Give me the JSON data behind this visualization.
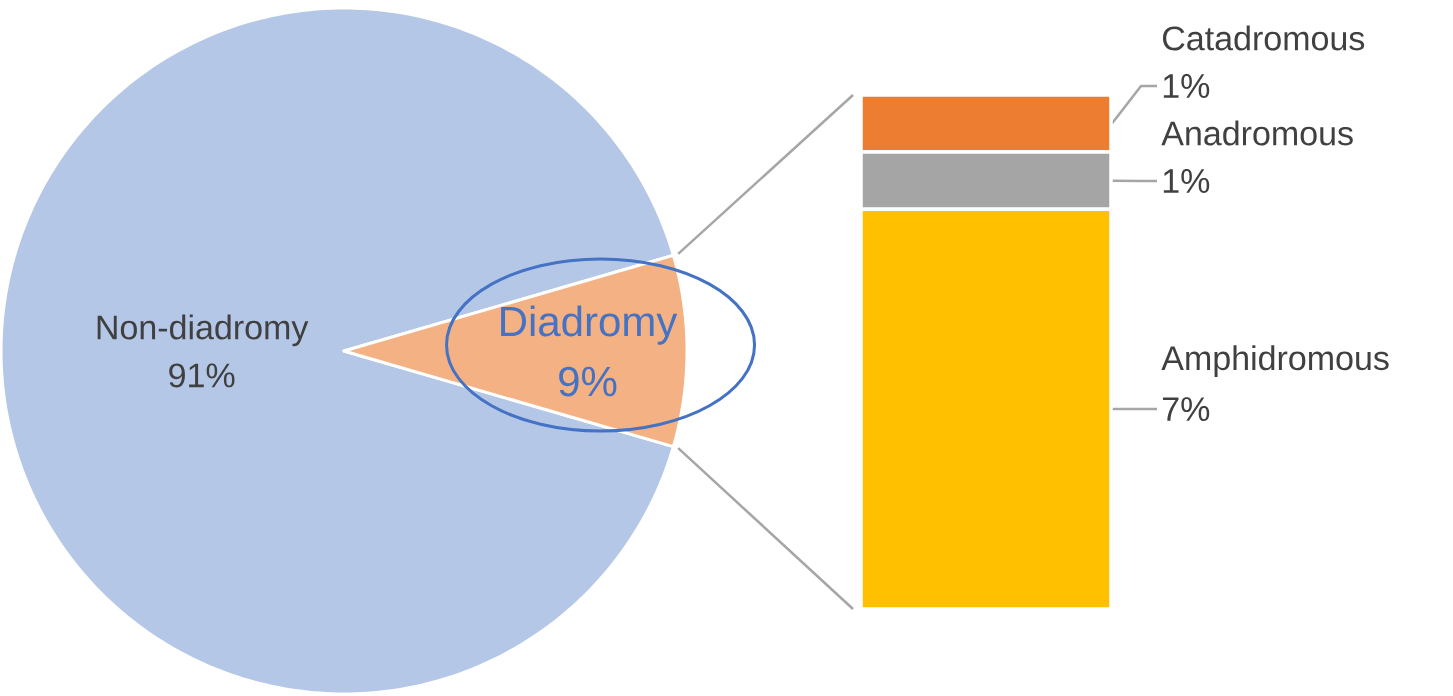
{
  "chart_data": [
    {
      "type": "pie",
      "categories": [
        "Non-diadromy",
        "Diadromy"
      ],
      "values": [
        91,
        9
      ],
      "colors": [
        "#b4c7e7",
        "#f4b183"
      ],
      "value_labels": [
        "91%",
        "9%"
      ]
    },
    {
      "type": "bar",
      "stacked": true,
      "categories": [
        null
      ],
      "series": [
        {
          "name": "Amphidromous",
          "color": "#ffc000",
          "values": [
            7
          ],
          "value_labels": [
            "7%"
          ]
        },
        {
          "name": "Anadromous",
          "color": "#a5a5a5",
          "values": [
            1
          ],
          "value_labels": [
            "1%"
          ]
        },
        {
          "name": "Catadromous",
          "color": "#ed7d31",
          "values": [
            1
          ],
          "value_labels": [
            "1%"
          ]
        }
      ]
    }
  ]
}
